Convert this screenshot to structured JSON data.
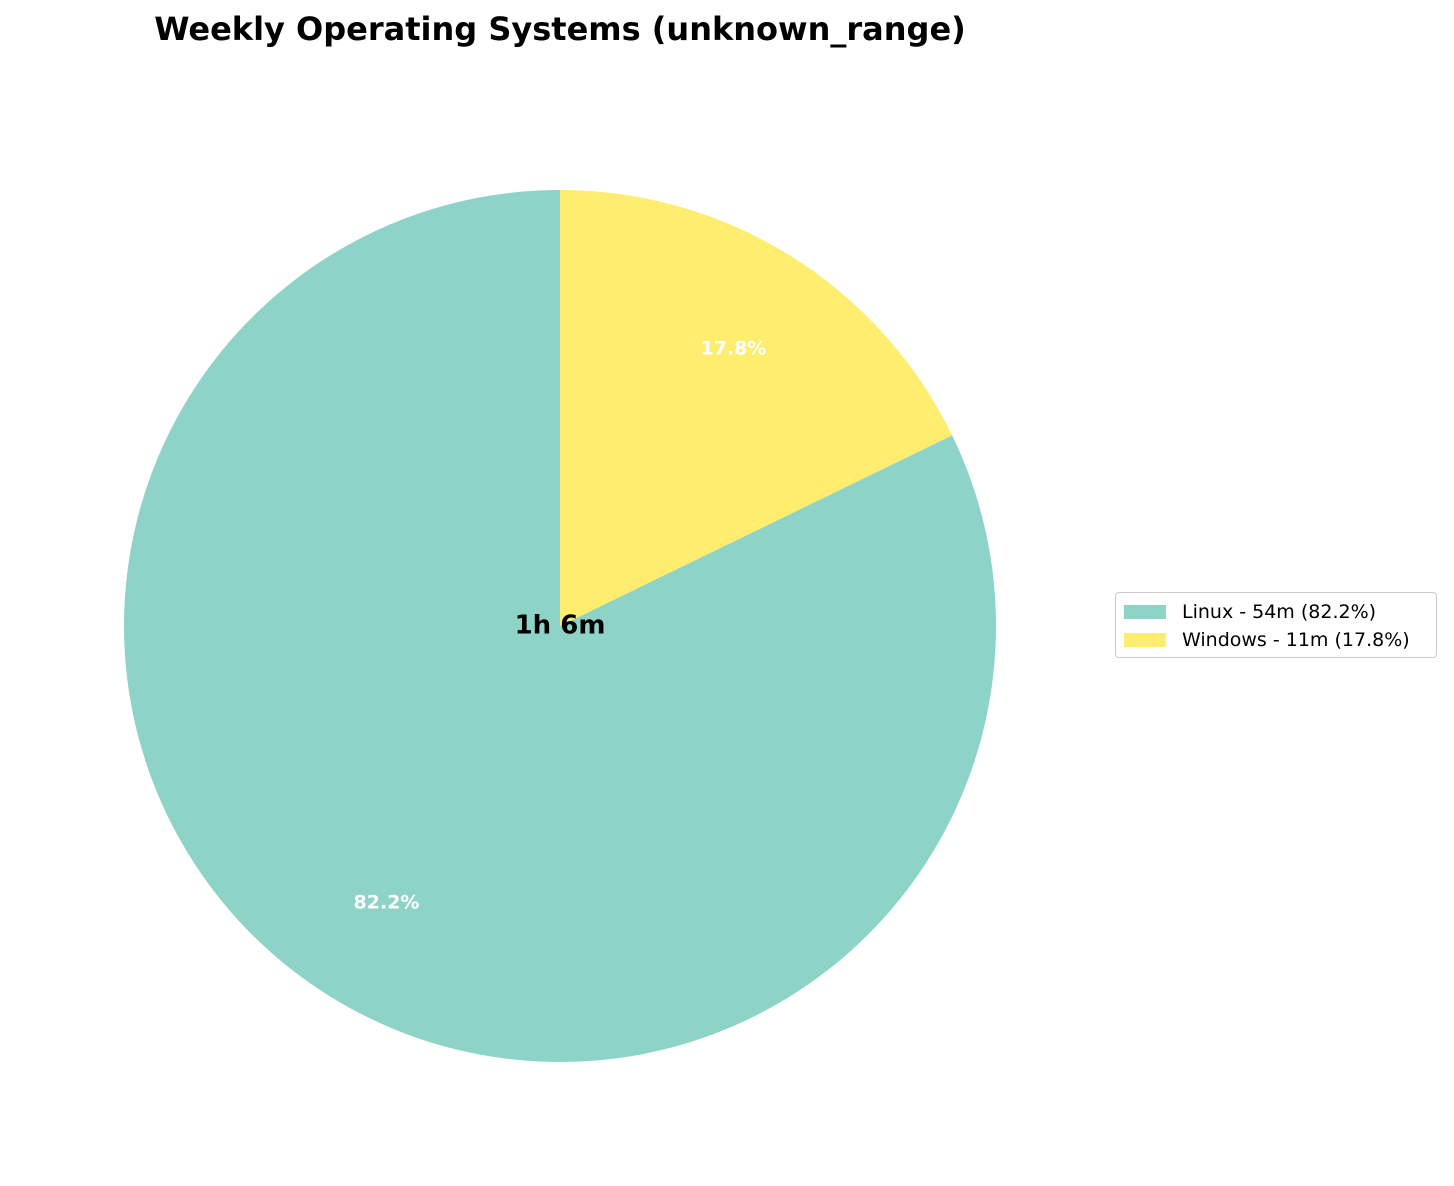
{
  "chart_data": {
    "type": "pie",
    "title": "Weekly Operating Systems (unknown_range)",
    "center_label": "1h 6m",
    "start_angle_deg": 90,
    "direction": "clockwise",
    "slices": [
      {
        "name": "Windows",
        "value": 17.8,
        "pct_label": "17.8%",
        "legend_label": "Windows - 11m (17.8%)",
        "color": "#ffed6f"
      },
      {
        "name": "Linux",
        "value": 82.2,
        "pct_label": "82.2%",
        "legend_label": "Linux - 54m (82.2%)",
        "color": "#8dd3c7"
      }
    ],
    "legend_order": [
      "Linux",
      "Windows"
    ],
    "legend_position": "right"
  }
}
